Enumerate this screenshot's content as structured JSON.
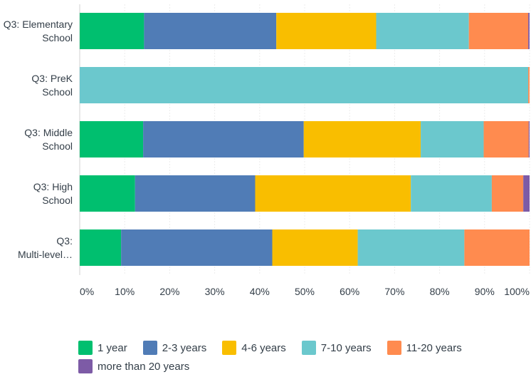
{
  "chart_data": {
    "type": "bar",
    "orientation": "horizontal",
    "stacked": true,
    "categories": [
      [
        "Q3: Elementary",
        "School"
      ],
      [
        "Q3: PreK",
        "School"
      ],
      [
        "Q3: Middle",
        "School"
      ],
      [
        "Q3: High",
        "School"
      ],
      [
        "Q3:",
        "Multi-level…"
      ]
    ],
    "series": [
      {
        "name": "1 year",
        "color": "#00bf6f",
        "values": [
          14.3,
          0,
          14.1,
          12.3,
          9.2
        ]
      },
      {
        "name": "2-3 years",
        "color": "#507cb6",
        "values": [
          29.4,
          0,
          35.7,
          26.7,
          33.6
        ]
      },
      {
        "name": "4-6 years",
        "color": "#f9be00",
        "values": [
          22.2,
          0,
          26.0,
          34.6,
          19.0
        ]
      },
      {
        "name": "7-10 years",
        "color": "#6bc8cd",
        "values": [
          20.6,
          99.7,
          14.0,
          18.0,
          23.7
        ]
      },
      {
        "name": "11-20 years",
        "color": "#ff8b4f",
        "values": [
          13.2,
          0.3,
          10.0,
          7.0,
          14.5
        ]
      },
      {
        "name": "more than 20 years",
        "color": "#7d5ba6",
        "values": [
          0.3,
          0,
          0.2,
          1.4,
          0
        ]
      }
    ],
    "x_ticks": [
      "0%",
      "10%",
      "20%",
      "30%",
      "40%",
      "50%",
      "60%",
      "70%",
      "80%",
      "90%",
      "100%"
    ],
    "xlim": [
      0,
      100
    ],
    "grid": true,
    "legend_position": "bottom"
  }
}
